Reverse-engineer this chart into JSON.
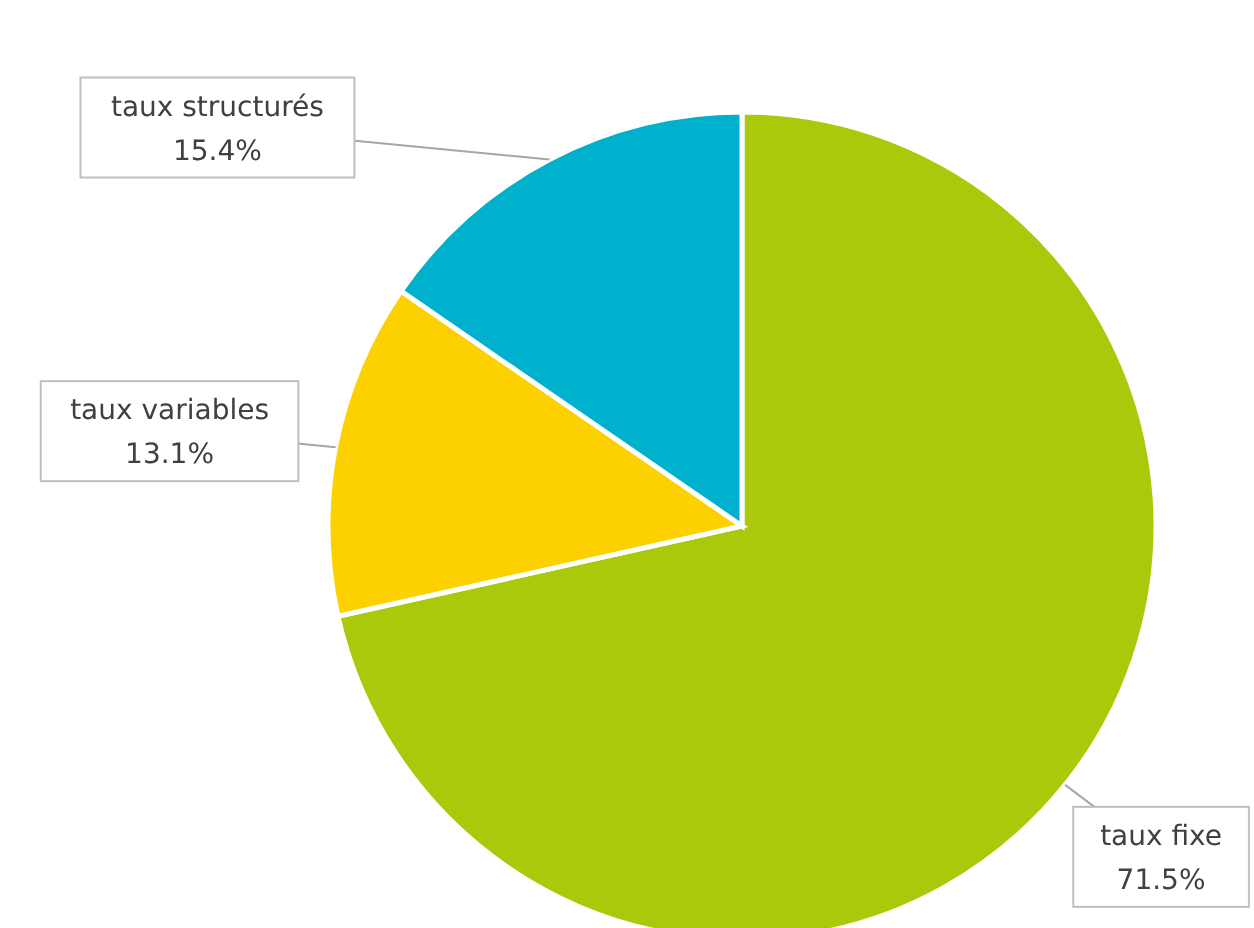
{
  "chart_data": {
    "type": "pie",
    "categories": [
      "taux fixe",
      "taux variables",
      "taux structurés"
    ],
    "values": [
      71.5,
      13.1,
      15.4
    ],
    "colors": [
      "#a9c90a",
      "#fdd100",
      "#00b1cd"
    ],
    "value_labels": [
      "71.5%",
      "13.1%",
      "15.4%"
    ]
  }
}
